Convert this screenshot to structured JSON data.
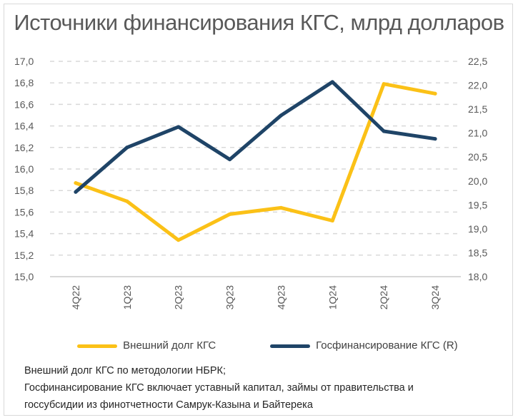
{
  "title": "Источники финансирования КГС, млрд долларов",
  "chart_data": {
    "type": "line",
    "categories": [
      "4Q22",
      "1Q23",
      "2Q23",
      "3Q23",
      "4Q23",
      "1Q24",
      "2Q24",
      "3Q24"
    ],
    "series": [
      {
        "name": "Внешний долг КГС",
        "axis": "left",
        "color": "#fbc117",
        "values": [
          15.87,
          15.7,
          15.34,
          15.58,
          15.64,
          15.52,
          16.79,
          16.7
        ]
      },
      {
        "name": "Госфинансирование КГС (R)",
        "axis": "right",
        "color": "#1f4467",
        "values": [
          19.77,
          20.7,
          21.13,
          20.45,
          21.37,
          22.07,
          21.04,
          20.88
        ]
      }
    ],
    "left_axis": {
      "ylim": [
        15.0,
        17.0
      ],
      "ticks": [
        "15,0",
        "15,2",
        "15,4",
        "15,6",
        "15,8",
        "16,0",
        "16,2",
        "16,4",
        "16,6",
        "16,8",
        "17,0"
      ]
    },
    "right_axis": {
      "ylim": [
        18.0,
        22.5
      ],
      "ticks": [
        "18,0",
        "18,5",
        "19,0",
        "19,5",
        "20,0",
        "20,5",
        "21,0",
        "21,5",
        "22,0",
        "22,5"
      ]
    },
    "grid": true,
    "legend": "bottom"
  },
  "notes": [
    "Внешний долг КГС по методологии НБРК;",
    "Госфинансирование КГС включает уставный капитал, займы от правительства и",
    "госсубсидии из финотчетности Самрук-Казына и Байтерека"
  ]
}
